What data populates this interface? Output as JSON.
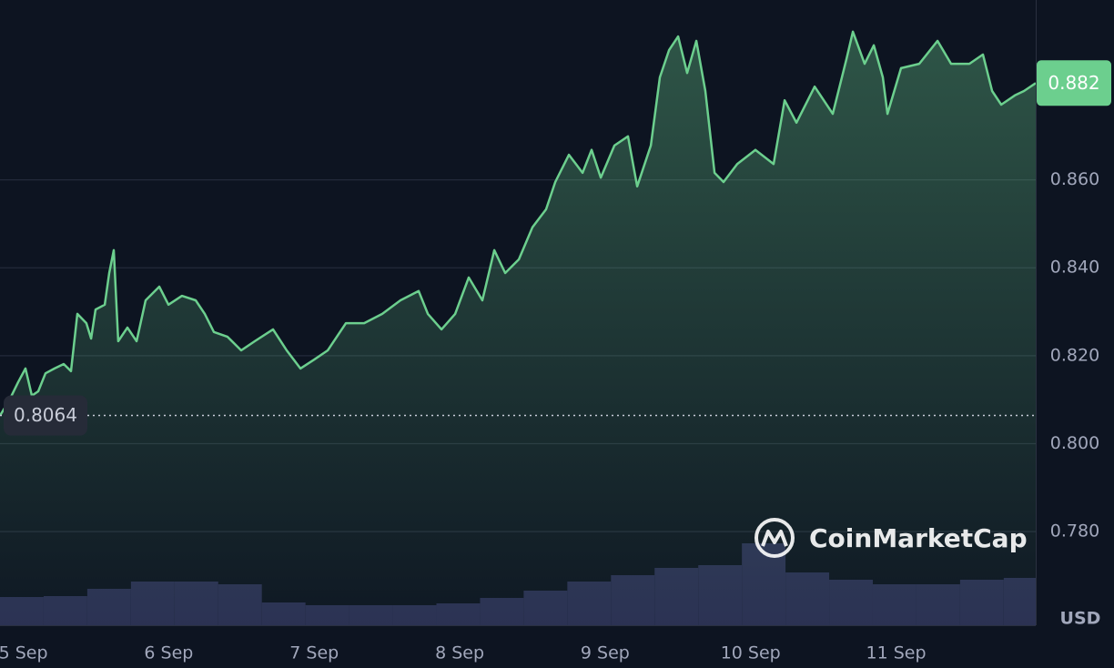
{
  "chart_data": {
    "type": "line",
    "x": [
      4.84,
      4.903,
      4.965,
      5.015,
      5.059,
      5.103,
      5.153,
      5.215,
      5.278,
      5.328,
      5.372,
      5.434,
      5.466,
      5.497,
      5.56,
      5.591,
      5.622,
      5.653,
      5.716,
      5.779,
      5.841,
      5.935,
      5.998,
      6.091,
      6.185,
      6.248,
      6.31,
      6.404,
      6.498,
      6.592,
      6.717,
      6.811,
      6.905,
      6.999,
      7.093,
      7.218,
      7.343,
      7.468,
      7.593,
      7.718,
      7.781,
      7.875,
      7.969,
      8.062,
      8.156,
      8.238,
      8.313,
      8.407,
      8.5,
      8.594,
      8.657,
      8.751,
      8.845,
      8.907,
      8.97,
      9.064,
      9.157,
      9.22,
      9.314,
      9.376,
      9.439,
      9.502,
      9.564,
      9.627,
      9.689,
      9.752,
      9.814,
      9.908,
      10.033,
      10.158,
      10.234,
      10.315,
      10.44,
      10.565,
      10.659,
      10.703,
      10.784,
      10.847,
      10.909,
      10.941,
      11.034,
      11.159,
      11.285,
      11.378,
      11.504,
      11.597,
      11.66,
      11.723,
      11.817,
      11.879,
      11.96
    ],
    "series": [
      {
        "color": "#6ccf8e",
        "values": [
          0.8064,
          0.8098,
          0.814,
          0.8171,
          0.8109,
          0.8119,
          0.816,
          0.8171,
          0.8181,
          0.8165,
          0.8295,
          0.8274,
          0.8239,
          0.8305,
          0.8316,
          0.8388,
          0.844,
          0.8233,
          0.8264,
          0.8233,
          0.8326,
          0.8357,
          0.8316,
          0.8336,
          0.8326,
          0.8295,
          0.8254,
          0.8243,
          0.8212,
          0.8233,
          0.826,
          0.8212,
          0.8171,
          0.8191,
          0.8212,
          0.8274,
          0.8274,
          0.8295,
          0.8326,
          0.8347,
          0.8295,
          0.826,
          0.8295,
          0.8378,
          0.8326,
          0.844,
          0.8388,
          0.8419,
          0.8492,
          0.8533,
          0.8595,
          0.8657,
          0.8616,
          0.8668,
          0.8605,
          0.8678,
          0.8699,
          0.8585,
          0.8678,
          0.8833,
          0.8895,
          0.8926,
          0.8843,
          0.8916,
          0.8802,
          0.8616,
          0.8595,
          0.8636,
          0.8668,
          0.8636,
          0.8781,
          0.873,
          0.8812,
          0.875,
          0.8875,
          0.8937,
          0.8864,
          0.8906,
          0.8833,
          0.875,
          0.8854,
          0.8864,
          0.8916,
          0.8864,
          0.8864,
          0.8885,
          0.8802,
          0.8771,
          0.8792,
          0.8802,
          0.882
        ]
      }
    ],
    "xlim": [
      4.84,
      11.96
    ],
    "ylim": [
      0.7587,
      0.9009
    ],
    "xticks": [
      {
        "value": 5,
        "label": "5 Sep"
      },
      {
        "value": 6,
        "label": "6 Sep"
      },
      {
        "value": 7,
        "label": "7 Sep"
      },
      {
        "value": 8,
        "label": "8 Sep"
      },
      {
        "value": 9,
        "label": "9 Sep"
      },
      {
        "value": 10,
        "label": "10 Sep"
      },
      {
        "value": 11,
        "label": "11 Sep"
      }
    ],
    "yticks": [
      {
        "value": 0.78,
        "label": "0.780"
      },
      {
        "value": 0.8,
        "label": "0.800"
      },
      {
        "value": 0.82,
        "label": "0.820"
      },
      {
        "value": 0.84,
        "label": "0.840"
      },
      {
        "value": 0.86,
        "label": "0.860"
      }
    ],
    "grid": true,
    "y_axis_label": "USD",
    "last_price_label": "0.882",
    "open_price": 0.8064,
    "open_price_label": "0.8064",
    "watermark": "CoinMarketCap",
    "volume": {
      "color": "#2a2f52",
      "bins": [
        4.84,
        5.14,
        5.44,
        5.74,
        6.04,
        6.34,
        6.64,
        6.94,
        7.24,
        7.54,
        7.84,
        8.14,
        8.44,
        8.74,
        9.04,
        9.34,
        9.64,
        9.94,
        10.24,
        10.54,
        10.84,
        11.14,
        11.44,
        11.74,
        11.96
      ],
      "values": [
        31,
        32,
        40,
        48,
        48,
        45,
        25,
        22,
        22,
        22,
        24,
        30,
        38,
        48,
        55,
        63,
        66,
        90,
        58,
        50,
        45,
        45,
        50,
        52
      ],
      "ylim": [
        0,
        687
      ]
    }
  }
}
